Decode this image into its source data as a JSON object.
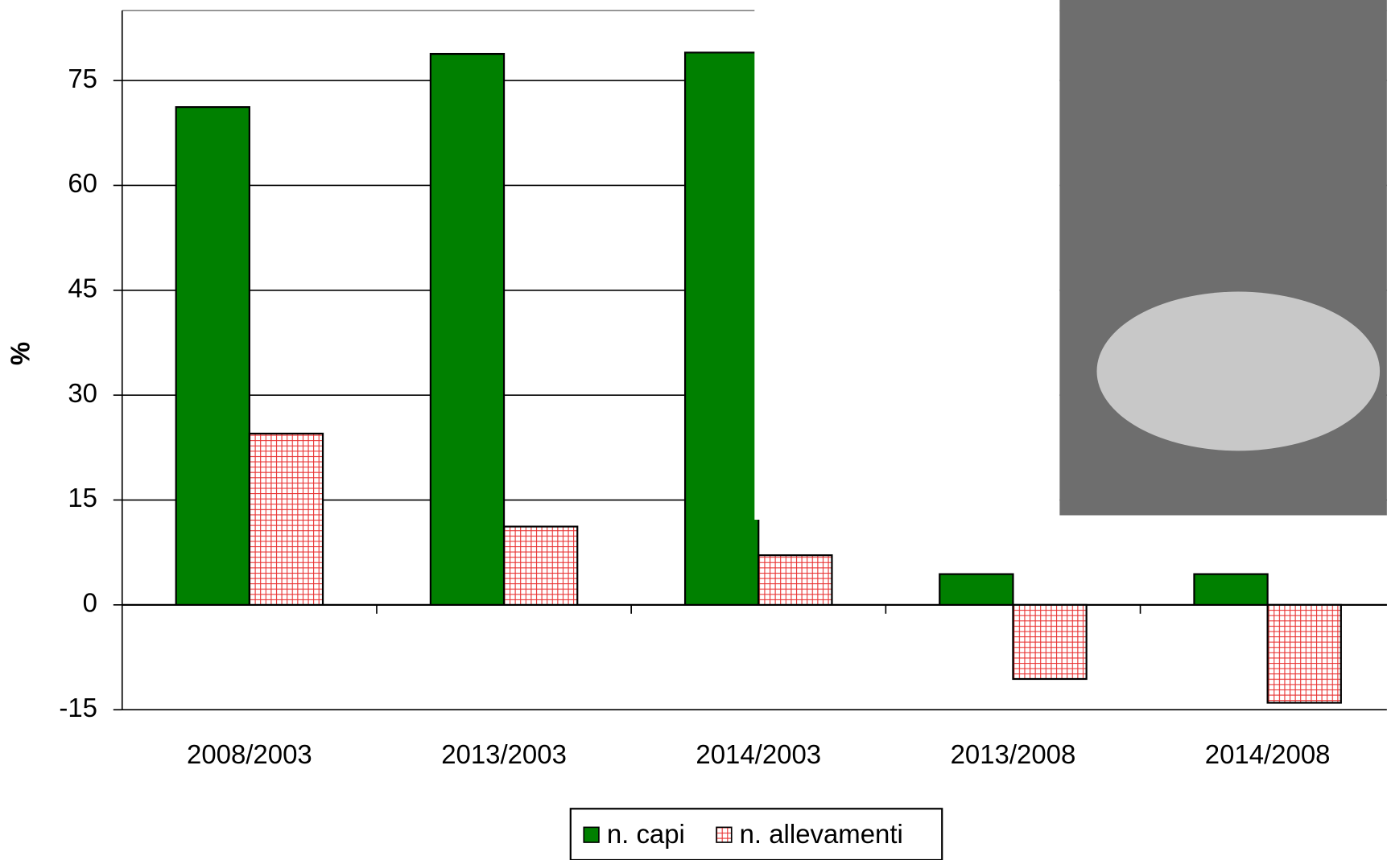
{
  "chart_data": {
    "type": "bar",
    "y_label": "%",
    "categories": [
      "2008/2003",
      "2013/2003",
      "2014/2003",
      "2013/2008",
      "2014/2008"
    ],
    "series": [
      {
        "name": "n. capi",
        "color": "#008000",
        "values": [
          71.2,
          78.8,
          79.0,
          4.4,
          4.4
        ]
      },
      {
        "name": "n. allevamenti",
        "color": "#ff0000",
        "values": [
          24.5,
          11.2,
          7.1,
          -10.6,
          -14.0
        ]
      }
    ],
    "ylim": [
      -15,
      85
    ],
    "yticks": [
      -15,
      0,
      15,
      30,
      45,
      60,
      75
    ],
    "grid": true,
    "legend": "bottom"
  }
}
